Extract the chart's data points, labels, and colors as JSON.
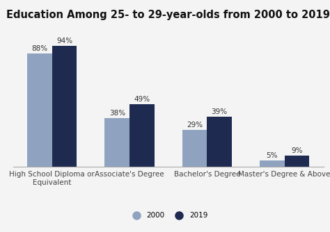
{
  "title": "Education Among 25- to 29-year-olds from 2000 to 2019",
  "categories": [
    "High School Diploma or\nEquivalent",
    "Associate's Degree",
    "Bachelor's Degree",
    "Master's Degree & Above"
  ],
  "values_2000": [
    88,
    38,
    29,
    5
  ],
  "values_2019": [
    94,
    49,
    39,
    9
  ],
  "labels_2000": [
    "88%",
    "38%",
    "29%",
    "5%"
  ],
  "labels_2019": [
    "94%",
    "49%",
    "39%",
    "9%"
  ],
  "color_2000": "#8fa3c0",
  "color_2019": "#1e2a50",
  "legend_labels": [
    "2000",
    "2019"
  ],
  "ylim": [
    0,
    108
  ],
  "bar_width": 0.32,
  "title_fontsize": 10.5,
  "label_fontsize": 7.5,
  "tick_fontsize": 7.5,
  "background_color": "#f4f4f4"
}
